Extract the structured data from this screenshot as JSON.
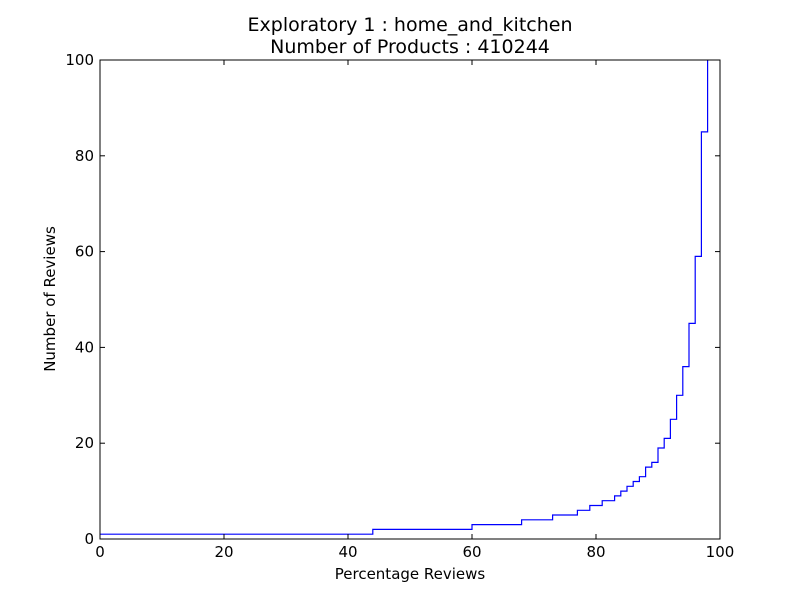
{
  "chart_data": {
    "type": "line",
    "step": true,
    "title": "Exploratory 1 : home_and_kitchen",
    "subtitle": "Number of Products : 410244",
    "xlabel": "Percentage Reviews",
    "ylabel": "Number of Reviews",
    "xlim": [
      0,
      100
    ],
    "ylim": [
      0,
      100
    ],
    "xticks": [
      0,
      20,
      40,
      60,
      80,
      100
    ],
    "yticks": [
      0,
      20,
      40,
      60,
      80,
      100
    ],
    "xtick_labels": [
      "0",
      "20",
      "40",
      "60",
      "80",
      "100"
    ],
    "ytick_labels": [
      "0",
      "20",
      "40",
      "60",
      "80",
      "100"
    ],
    "grid": false,
    "series": [
      {
        "color": "#0000ff",
        "x": [
          0,
          44,
          60,
          68,
          73,
          77,
          79,
          81,
          83,
          84,
          85,
          86,
          87,
          88,
          89,
          90,
          91,
          92,
          93,
          94,
          95,
          96,
          97,
          98
        ],
        "y": [
          1,
          2,
          3,
          4,
          5,
          6,
          7,
          8,
          9,
          10,
          11,
          12,
          13,
          15,
          16,
          19,
          21,
          25,
          30,
          36,
          45,
          59,
          85,
          100
        ]
      }
    ]
  }
}
